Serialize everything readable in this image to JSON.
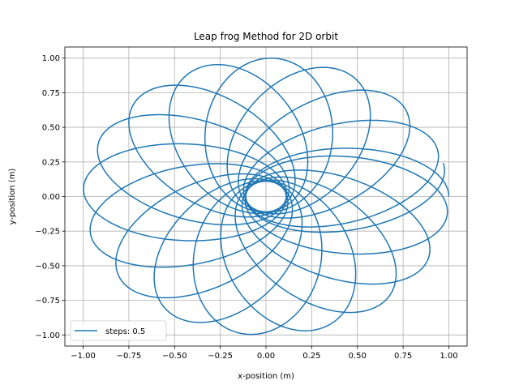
{
  "chart_data": {
    "type": "line",
    "title": "Leap frog Method for 2D orbit",
    "xlabel": "x-position (m)",
    "ylabel": "y-position (m)",
    "xlim": [
      -1.1,
      1.1
    ],
    "ylim": [
      -1.08,
      1.08
    ],
    "xticks": [
      -1.0,
      -0.75,
      -0.5,
      -0.25,
      0.0,
      0.25,
      0.5,
      0.75,
      1.0
    ],
    "xtick_labels": [
      "−1.00",
      "−0.75",
      "−0.50",
      "−0.25",
      "0.00",
      "0.25",
      "0.50",
      "0.75",
      "1.00"
    ],
    "yticks": [
      -1.0,
      -0.75,
      -0.5,
      -0.25,
      0.0,
      0.25,
      0.5,
      0.75,
      1.0
    ],
    "ytick_labels": [
      "−1.00",
      "−0.75",
      "−0.50",
      "−0.25",
      "0.00",
      "0.25",
      "0.50",
      "0.75",
      "1.00"
    ],
    "grid": true,
    "legend_position": "lower-left",
    "series": [
      {
        "name": "steps: 0.5",
        "color": "#1f77b4",
        "orbit_model": {
          "apoapsis_radius": 1.0,
          "periapsis_radius": 0.11,
          "start_angle_deg": 0,
          "precession_per_orbit_deg": 22,
          "orbits": 17
        }
      }
    ]
  }
}
